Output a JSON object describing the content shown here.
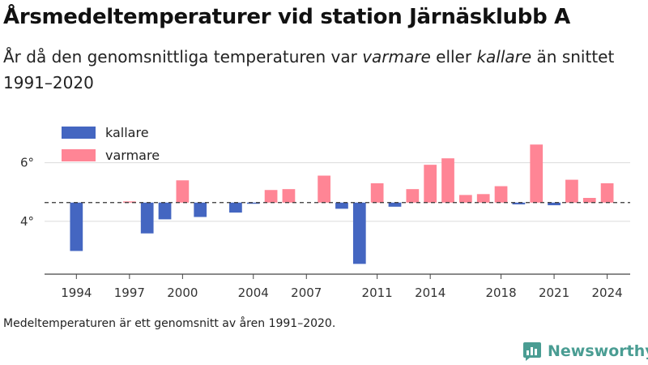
{
  "subtitle": {
    "before": "År då den genomsnittliga temperaturen var ",
    "warm_word": "varmare",
    "middle": " eller ",
    "cold_word": "kallare",
    "after": " än snittet 1991–2020"
  },
  "footnote": "Medeltemperaturen är ett genomsnitt av åren 1991–2020.",
  "brand": {
    "name": "Newsworthy",
    "icon": "newsworthy-logo-icon",
    "color": "#4a9d93"
  },
  "chart_data": {
    "type": "bar",
    "title": "Årsmedeltemperaturer vid station Järnäsklubb A",
    "xlabel": "",
    "ylabel": "",
    "baseline": 4.64,
    "ylim": [
      2.2,
      7.4
    ],
    "xlim": [
      1992.2,
      2025.3
    ],
    "yticks": [
      4,
      6
    ],
    "ytick_labels": [
      "4°",
      "6°"
    ],
    "xticks": [
      1994,
      1997,
      2000,
      2004,
      2007,
      2011,
      2014,
      2018,
      2021,
      2024
    ],
    "grid": true,
    "legend_position": "top-left",
    "series": [
      {
        "name": "kallare",
        "color": "#4466c1",
        "points": [
          {
            "x": 1994,
            "y": 2.99
          },
          {
            "x": 1998,
            "y": 3.59
          },
          {
            "x": 1999,
            "y": 4.07
          },
          {
            "x": 2001,
            "y": 4.15
          },
          {
            "x": 2003,
            "y": 4.3
          },
          {
            "x": 2004,
            "y": 4.6
          },
          {
            "x": 2009,
            "y": 4.43
          },
          {
            "x": 2010,
            "y": 2.55
          },
          {
            "x": 2012,
            "y": 4.5
          },
          {
            "x": 2019,
            "y": 4.58
          },
          {
            "x": 2021,
            "y": 4.55
          }
        ]
      },
      {
        "name": "varmare",
        "color": "#ff8595",
        "points": [
          {
            "x": 1997,
            "y": 4.68
          },
          {
            "x": 2000,
            "y": 5.4
          },
          {
            "x": 2005,
            "y": 5.07
          },
          {
            "x": 2006,
            "y": 5.1
          },
          {
            "x": 2008,
            "y": 5.56
          },
          {
            "x": 2011,
            "y": 5.3
          },
          {
            "x": 2013,
            "y": 5.1
          },
          {
            "x": 2014,
            "y": 5.93
          },
          {
            "x": 2015,
            "y": 6.15
          },
          {
            "x": 2016,
            "y": 4.9
          },
          {
            "x": 2017,
            "y": 4.93
          },
          {
            "x": 2018,
            "y": 5.2
          },
          {
            "x": 2020,
            "y": 6.62
          },
          {
            "x": 2022,
            "y": 5.42
          },
          {
            "x": 2023,
            "y": 4.8
          },
          {
            "x": 2024,
            "y": 5.3
          }
        ]
      }
    ]
  }
}
